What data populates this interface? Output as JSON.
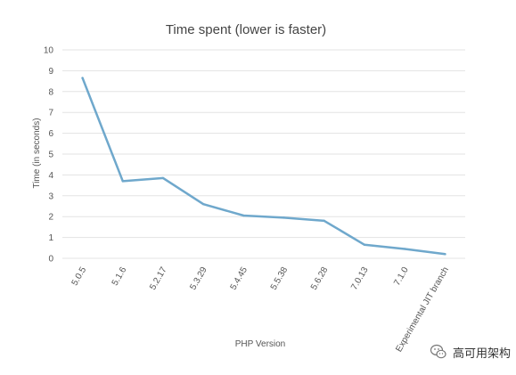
{
  "chart_data": {
    "type": "line",
    "title": "Time spent (lower is faster)",
    "xlabel": "PHP Version",
    "ylabel": "Time (in seconds)",
    "categories": [
      "5.0.5",
      "5.1.6",
      "5.2.17",
      "5.3.29",
      "5.4.45",
      "5.5.38",
      "5.6.28",
      "7.0.13",
      "7.1.0",
      "Experimental JIT branch"
    ],
    "values": [
      8.65,
      3.7,
      3.85,
      2.6,
      2.05,
      1.95,
      1.8,
      0.65,
      0.45,
      0.2
    ],
    "ylim": [
      0,
      10
    ],
    "yticks": [
      0,
      1,
      2,
      3,
      4,
      5,
      6,
      7,
      8,
      9,
      10
    ],
    "grid": true,
    "line_color": "#6fa8cc",
    "grid_color": "#e3e3e3"
  },
  "watermark": {
    "text": "高可用架构",
    "icon": "wechat-icon"
  }
}
